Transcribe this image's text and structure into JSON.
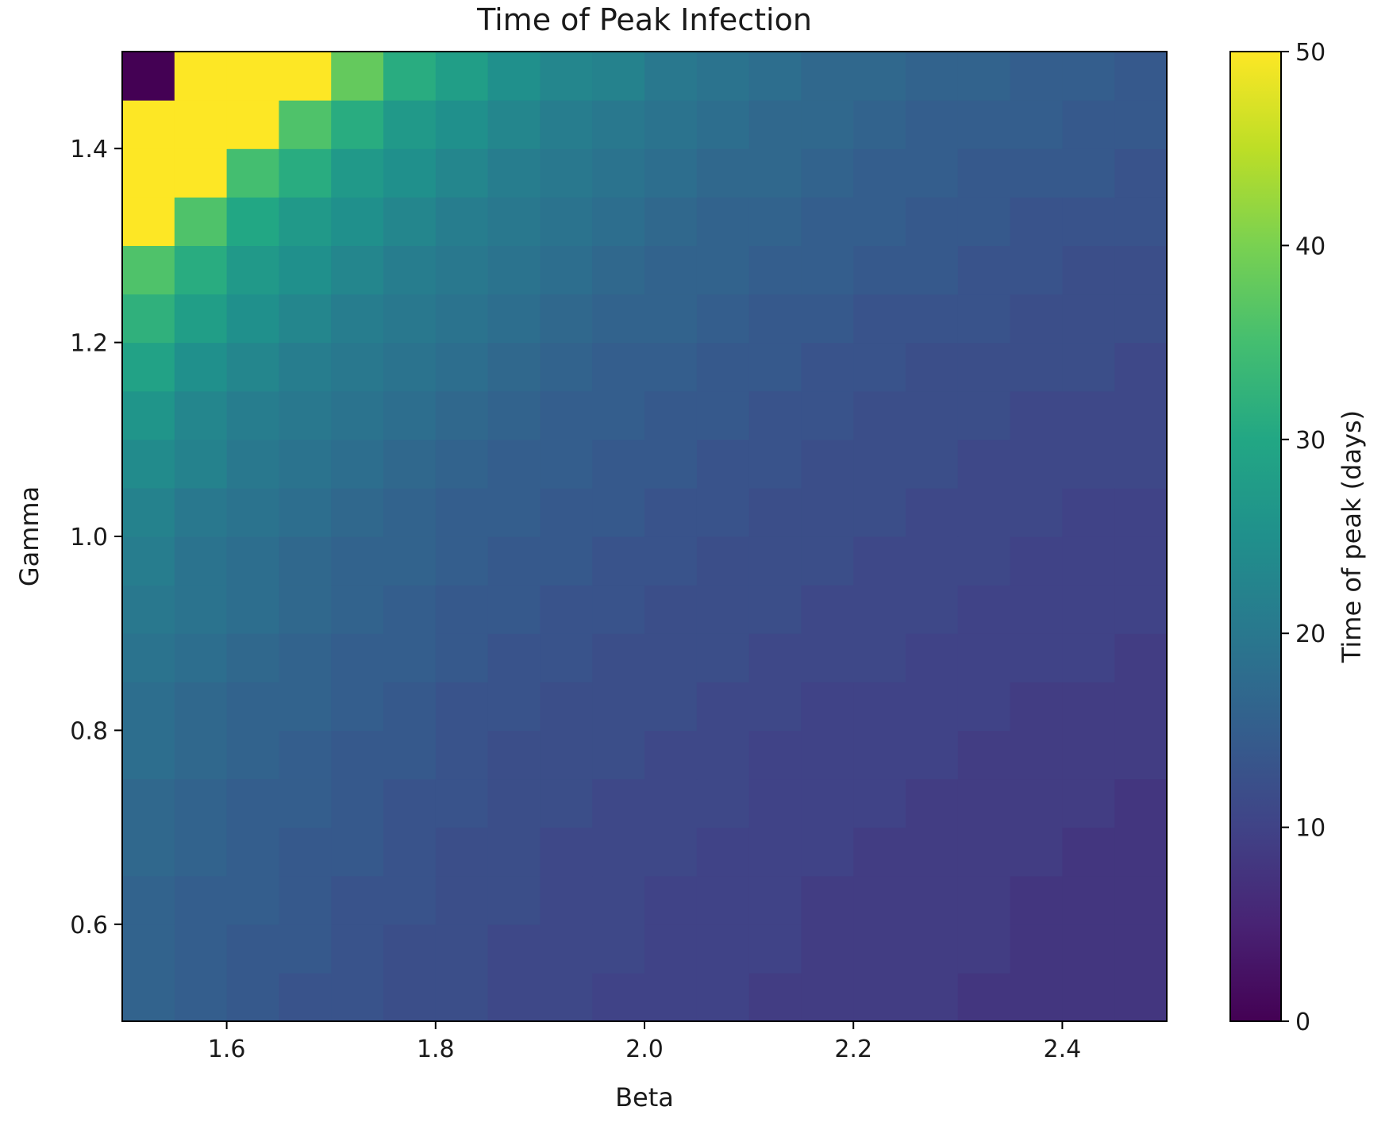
{
  "chart_data": {
    "type": "heatmap",
    "title": "Time of Peak Infection",
    "xlabel": "Beta",
    "ylabel": "Gamma",
    "x_range": [
      1.5,
      2.5
    ],
    "y_range": [
      0.5,
      1.5
    ],
    "x_ticks": [
      1.6,
      1.8,
      2.0,
      2.2,
      2.4
    ],
    "x_tick_labels": [
      "1.6",
      "1.8",
      "2.0",
      "2.2",
      "2.4"
    ],
    "y_ticks": [
      0.6,
      0.8,
      1.0,
      1.2,
      1.4
    ],
    "y_tick_labels": [
      "0.6",
      "0.8",
      "1.0",
      "1.2",
      "1.4"
    ],
    "beta_values": [
      1.525,
      1.575,
      1.625,
      1.675,
      1.725,
      1.775,
      1.825,
      1.875,
      1.925,
      1.975,
      2.025,
      2.075,
      2.125,
      2.175,
      2.225,
      2.275,
      2.325,
      2.375,
      2.425,
      2.475
    ],
    "gamma_values": [
      0.525,
      0.575,
      0.625,
      0.675,
      0.725,
      0.775,
      0.825,
      0.875,
      0.925,
      0.975,
      1.025,
      1.075,
      1.125,
      1.175,
      1.225,
      1.275,
      1.325,
      1.375,
      1.425,
      1.475
    ],
    "z_description": "rows ordered from gamma 0.525 (bottom) to 1.475 (top); columns ordered by beta ascending",
    "z": [
      [
        16,
        15,
        14,
        13,
        13,
        12,
        12,
        11,
        11,
        10,
        10,
        10,
        9,
        9,
        9,
        9,
        8,
        8,
        8,
        8
      ],
      [
        16,
        15,
        14,
        14,
        13,
        12,
        12,
        11,
        11,
        11,
        10,
        10,
        10,
        9,
        9,
        9,
        9,
        8,
        8,
        8
      ],
      [
        16,
        15,
        15,
        14,
        13,
        13,
        12,
        12,
        11,
        11,
        10,
        10,
        10,
        9,
        9,
        9,
        9,
        8,
        8,
        8
      ],
      [
        17,
        16,
        15,
        14,
        14,
        13,
        12,
        12,
        11,
        11,
        11,
        10,
        10,
        10,
        9,
        9,
        9,
        9,
        8,
        8
      ],
      [
        17,
        16,
        15,
        15,
        14,
        13,
        13,
        12,
        12,
        11,
        11,
        11,
        10,
        10,
        10,
        9,
        9,
        9,
        9,
        8
      ],
      [
        18,
        17,
        16,
        15,
        14,
        14,
        13,
        12,
        12,
        12,
        11,
        11,
        10,
        10,
        10,
        10,
        9,
        9,
        9,
        9
      ],
      [
        18,
        17,
        16,
        16,
        15,
        14,
        13,
        13,
        12,
        12,
        12,
        11,
        11,
        10,
        10,
        10,
        10,
        9,
        9,
        9
      ],
      [
        19,
        18,
        17,
        16,
        15,
        15,
        14,
        13,
        13,
        12,
        12,
        12,
        11,
        11,
        11,
        10,
        10,
        10,
        10,
        9
      ],
      [
        20,
        19,
        18,
        17,
        16,
        15,
        14,
        14,
        13,
        13,
        12,
        12,
        12,
        11,
        11,
        11,
        10,
        10,
        10,
        10
      ],
      [
        21,
        19,
        18,
        17,
        16,
        16,
        15,
        14,
        14,
        13,
        13,
        12,
        12,
        12,
        11,
        11,
        11,
        10,
        10,
        10
      ],
      [
        22,
        20,
        19,
        18,
        17,
        16,
        15,
        15,
        14,
        14,
        13,
        13,
        12,
        12,
        12,
        11,
        11,
        11,
        10,
        10
      ],
      [
        24,
        22,
        20,
        19,
        18,
        17,
        16,
        15,
        15,
        14,
        14,
        13,
        13,
        12,
        12,
        12,
        11,
        11,
        11,
        11
      ],
      [
        26,
        23,
        21,
        20,
        19,
        18,
        17,
        16,
        15,
        15,
        14,
        14,
        13,
        13,
        12,
        12,
        12,
        11,
        11,
        11
      ],
      [
        29,
        25,
        23,
        21,
        20,
        19,
        18,
        17,
        16,
        15,
        15,
        14,
        14,
        13,
        13,
        12,
        12,
        12,
        12,
        11
      ],
      [
        32,
        28,
        25,
        23,
        21,
        20,
        19,
        18,
        17,
        16,
        16,
        15,
        14,
        14,
        13,
        13,
        13,
        12,
        12,
        12
      ],
      [
        36,
        31,
        27,
        25,
        23,
        21,
        20,
        19,
        18,
        17,
        16,
        16,
        15,
        15,
        14,
        14,
        13,
        13,
        12,
        12
      ],
      [
        50,
        36,
        30,
        27,
        25,
        23,
        21,
        20,
        19,
        18,
        17,
        16,
        16,
        15,
        15,
        14,
        14,
        13,
        13,
        13
      ],
      [
        50,
        50,
        35,
        31,
        27,
        25,
        23,
        21,
        20,
        19,
        18,
        17,
        17,
        16,
        15,
        15,
        14,
        14,
        14,
        13
      ],
      [
        50,
        50,
        50,
        36,
        31,
        27,
        25,
        23,
        21,
        20,
        19,
        18,
        17,
        17,
        16,
        15,
        15,
        15,
        14,
        14
      ],
      [
        0,
        50,
        50,
        50,
        38,
        31,
        28,
        25,
        23,
        22,
        20,
        19,
        18,
        17,
        17,
        16,
        16,
        15,
        15,
        14
      ]
    ],
    "colorbar": {
      "label": "Time of peak (days)",
      "range": [
        0,
        50
      ],
      "ticks": [
        0,
        10,
        20,
        30,
        40,
        50
      ],
      "tick_labels": [
        "0",
        "10",
        "20",
        "30",
        "40",
        "50"
      ],
      "colormap": "viridis"
    }
  }
}
